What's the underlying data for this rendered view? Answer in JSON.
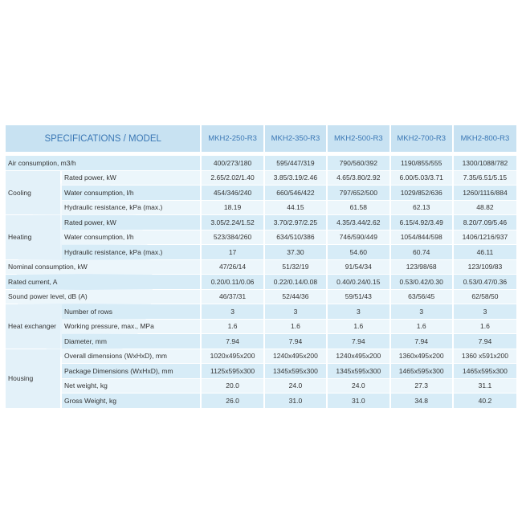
{
  "header": {
    "title": "SPECIFICATIONS / MODEL",
    "models": [
      "MKH2-250-R3",
      "MKH2-350-R3",
      "MKH2-500-R3",
      "MKH2-700-R3",
      "MKH2-800-R3"
    ]
  },
  "rows": [
    {
      "group": "",
      "label": "Air consumption, m3/h",
      "values": [
        "400/273/180",
        "595/447/319",
        "790/560/392",
        "1190/855/555",
        "1300/1088/782"
      ]
    },
    {
      "group": "Cooling",
      "span": 3,
      "label": "Rated power, kW",
      "values": [
        "2.65/2.02/1.40",
        "3.85/3.19/2.46",
        "4.65/3.80/2.92",
        "6.00/5.03/3.71",
        "7.35/6.51/5.15"
      ]
    },
    {
      "label": "Water consumption, l/h",
      "values": [
        "454/346/240",
        "660/546/422",
        "797/652/500",
        "1029/852/636",
        "1260/1116/884"
      ]
    },
    {
      "label": "Hydraulic resistance, kPa (max.)",
      "values": [
        "18.19",
        "44.15",
        "61.58",
        "62.13",
        "48.82"
      ]
    },
    {
      "group": "Heating",
      "span": 3,
      "label": "Rated power, kW",
      "values": [
        "3.05/2.24/1.52",
        "3.70/2.97/2.25",
        "4.35/3.44/2.62",
        "6.15/4.92/3.49",
        "8.20/7.09/5.46"
      ]
    },
    {
      "label": "Water consumption, l/h",
      "values": [
        "523/384/260",
        "634/510/386",
        "746/590/449",
        "1054/844/598",
        "1406/1216/937"
      ]
    },
    {
      "label": "Hydraulic resistance, kPa (max.)",
      "values": [
        "17",
        "37.30",
        "54.60",
        "60.74",
        "46.11"
      ]
    },
    {
      "group": "",
      "label": "Nominal consumption, kW",
      "values": [
        "47/26/14",
        "51/32/19",
        "91/54/34",
        "123/98/68",
        "123/109/83"
      ]
    },
    {
      "group": "",
      "label": "Rated current, A",
      "values": [
        "0.20/0.11/0.06",
        "0.22/0.14/0.08",
        "0.40/0.24/0.15",
        "0.53/0.42/0.30",
        "0.53/0.47/0.36"
      ]
    },
    {
      "group": "",
      "label": "Sound power level, dB (A)",
      "values": [
        "46/37/31",
        "52/44/36",
        "59/51/43",
        "63/56/45",
        "62/58/50"
      ]
    },
    {
      "group": "Heat exchanger",
      "span": 3,
      "label": "Number of rows",
      "values": [
        "3",
        "3",
        "3",
        "3",
        "3"
      ]
    },
    {
      "label": "Working pressure, max., MPa",
      "values": [
        "1.6",
        "1.6",
        "1.6",
        "1.6",
        "1.6"
      ]
    },
    {
      "label": "Diameter, mm",
      "values": [
        "7.94",
        "7.94",
        "7.94",
        "7.94",
        "7.94"
      ]
    },
    {
      "group": "Housing",
      "span": 4,
      "label": "Overall dimensions (WxHxD), mm",
      "values": [
        "1020x495x200",
        "1240x495x200",
        "1240x495x200",
        "1360x495x200",
        "1360 x591x200"
      ]
    },
    {
      "label": "Package Dimensions (WxHxD), mm",
      "values": [
        "1125x595x300",
        "1345x595x300",
        "1345x595x300",
        "1465x595x300",
        "1465x595x300"
      ]
    },
    {
      "label": "Net weight, kg",
      "values": [
        "20.0",
        "24.0",
        "24.0",
        "27.3",
        "31.1"
      ]
    },
    {
      "label": "Gross Weight, kg",
      "values": [
        "26.0",
        "31.0",
        "31.0",
        "34.8",
        "40.2"
      ]
    }
  ]
}
